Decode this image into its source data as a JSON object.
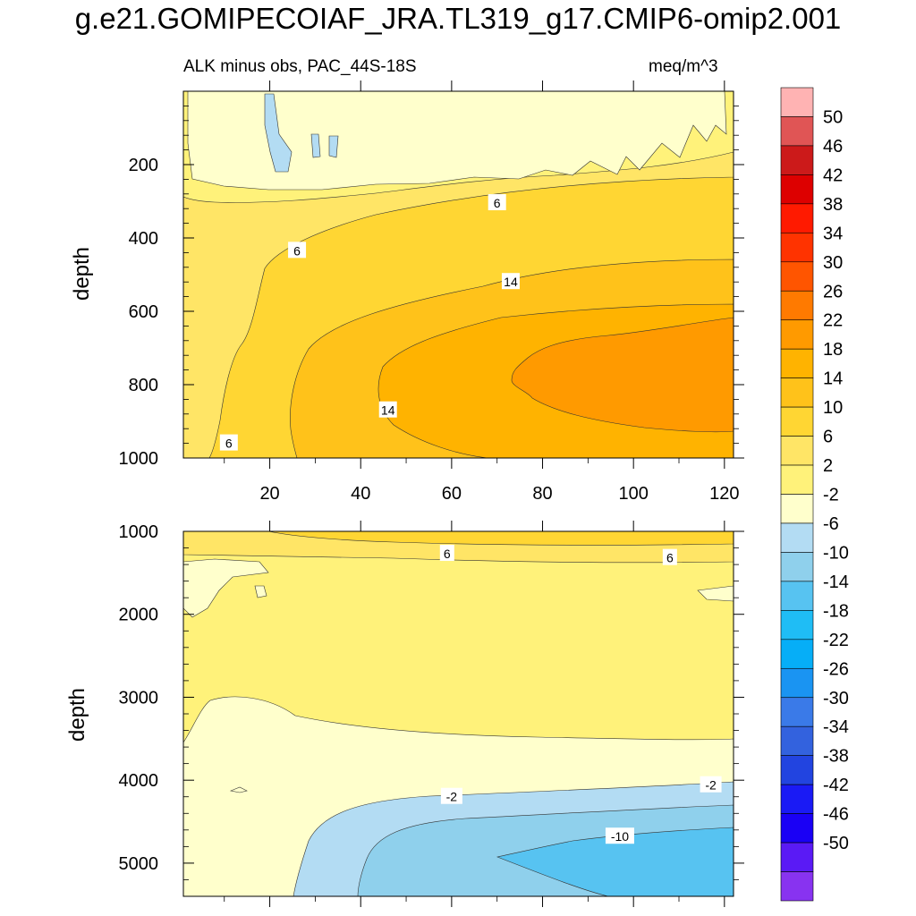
{
  "title": "g.e21.GOMIPECOIAF_JRA.TL319_g17.CMIP6-omip2.001",
  "subtitle_left": "ALK minus obs, PAC_44S-18S",
  "subtitle_right": "meq/m^3",
  "chart_data": {
    "type": "heatmap",
    "variable": "ALK minus obs",
    "region": "PAC_44S-18S",
    "units": "meq/m^3",
    "x_ticks": [
      20,
      40,
      60,
      80,
      100,
      120
    ],
    "xlim": [
      1,
      122
    ],
    "panels": [
      {
        "name": "upper",
        "ylabel": "depth",
        "ylim": [
          1000,
          0
        ],
        "y_ticks": [
          200,
          400,
          600,
          800,
          1000
        ],
        "contour_labels": [
          {
            "text": "6",
            "x": 70,
            "y": 305
          },
          {
            "text": "6",
            "x": 26,
            "y": 435
          },
          {
            "text": "14",
            "x": 73,
            "y": 520
          },
          {
            "text": "14",
            "x": 46,
            "y": 870
          },
          {
            "text": "6",
            "x": 11,
            "y": 960
          }
        ]
      },
      {
        "name": "lower",
        "ylabel": "depth",
        "ylim": [
          5400,
          1000
        ],
        "y_ticks": [
          1000,
          2000,
          3000,
          4000,
          5000
        ],
        "contour_labels": [
          {
            "text": "6",
            "x": 59,
            "y": 1270
          },
          {
            "text": "6",
            "x": 108,
            "y": 1320
          },
          {
            "text": "-2",
            "x": 60,
            "y": 4200
          },
          {
            "text": "-2",
            "x": 117,
            "y": 4060
          },
          {
            "text": "-10",
            "x": 97,
            "y": 4680
          }
        ]
      }
    ],
    "colorbar": {
      "labels": [
        "50",
        "46",
        "42",
        "38",
        "34",
        "30",
        "26",
        "22",
        "18",
        "14",
        "10",
        "6",
        "2",
        "-2",
        "-6",
        "-10",
        "-14",
        "-18",
        "-22",
        "-26",
        "-30",
        "-34",
        "-38",
        "-42",
        "-46",
        "-50"
      ],
      "colors": [
        "#ffb3b3",
        "#e05555",
        "#cc1a1a",
        "#dd0000",
        "#ff1a00",
        "#ff3300",
        "#ff5500",
        "#ff7a00",
        "#ff9a00",
        "#ffb300",
        "#ffc21a",
        "#ffd633",
        "#ffe566",
        "#fff27a",
        "#ffffcc",
        "#b3dcf3",
        "#8fd0ec",
        "#57c3f1",
        "#1fbdf5",
        "#06aef7",
        "#1a94f2",
        "#3a7ae8",
        "#3362de",
        "#2244e0",
        "#1a1af5",
        "#1a00f5",
        "#5a1af5",
        "#8833f0"
      ]
    }
  }
}
